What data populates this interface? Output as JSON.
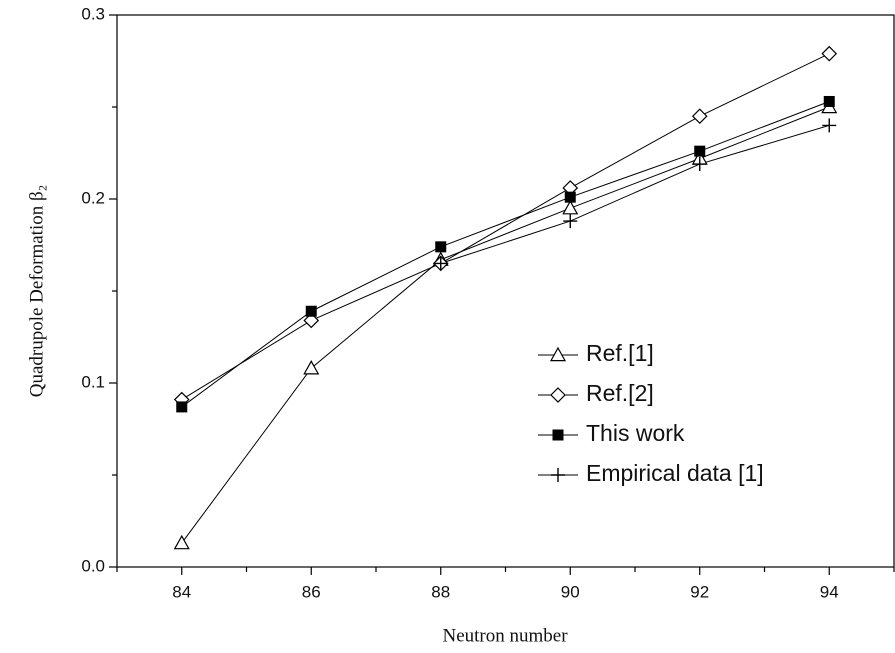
{
  "chart_data": {
    "type": "line",
    "xlabel": "Neutron number",
    "ylabel": "Quadrupole Deformation β₂",
    "x": [
      84,
      86,
      88,
      90,
      92,
      94
    ],
    "series": [
      {
        "name": "Ref.[1]",
        "color": "#000000",
        "marker": "triangle",
        "values": [
          0.013,
          0.108,
          0.167,
          0.195,
          0.222,
          0.25
        ]
      },
      {
        "name": "Ref.[2]",
        "color": "#000000",
        "marker": "diamond",
        "values": [
          0.091,
          0.134,
          0.165,
          0.206,
          0.245,
          0.279
        ]
      },
      {
        "name": "This work",
        "color": "#000000",
        "marker": "square",
        "values": [
          0.087,
          0.139,
          0.174,
          0.201,
          0.226,
          0.253
        ]
      },
      {
        "name": "Empirical data [1]",
        "color": "#000000",
        "marker": "plus",
        "values": [
          null,
          null,
          0.165,
          0.188,
          0.219,
          0.24
        ]
      }
    ],
    "xlim": [
      83,
      95
    ],
    "ylim": [
      0,
      0.3
    ],
    "xticks": [
      84,
      86,
      88,
      90,
      92,
      94
    ],
    "yticks": [
      {
        "value": 0,
        "label": "0.0"
      },
      0.1,
      0.2,
      0.3
    ],
    "xminorticks": [
      83,
      85,
      87,
      89,
      91,
      93,
      95
    ],
    "yminorticks": [
      0.05,
      0.15,
      0.25
    ],
    "legend": "lower right"
  }
}
